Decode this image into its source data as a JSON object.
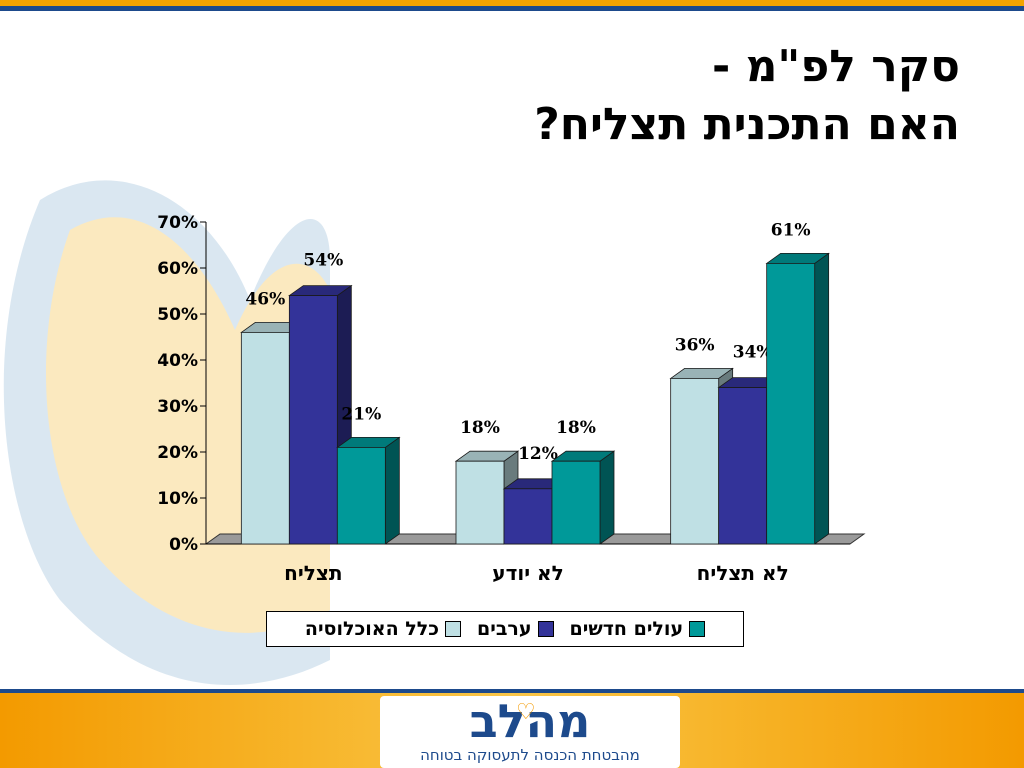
{
  "slide": {
    "title_line1": "סקר לפ\"מ -",
    "title_line2": "האם התכנית תצליח?"
  },
  "logo": {
    "name": "מהלב",
    "tagline": "מהבטחת הכנסה לתעסוקה בטוחה"
  },
  "colors": {
    "band_orange": "#f4a300",
    "band_blue": "#1d4a8c"
  },
  "chart_data": {
    "type": "bar",
    "categories": [
      "תצליח",
      "לא יודע",
      "לא תצליח"
    ],
    "series": [
      {
        "name": "כלל האוכלוסיה",
        "values": [
          46,
          18,
          36
        ],
        "color": "#bfe0e4"
      },
      {
        "name": "ערבים",
        "values": [
          54,
          12,
          34
        ],
        "color": "#333399"
      },
      {
        "name": "עולים חדשים",
        "values": [
          21,
          18,
          61
        ],
        "color": "#009999"
      }
    ],
    "value_labels": [
      [
        "46%",
        "18%",
        "36%"
      ],
      [
        "54%",
        "12%",
        "34%"
      ],
      [
        "21%",
        "18%",
        "61%"
      ]
    ],
    "ylim": [
      0,
      70
    ],
    "yticks": [
      "0%",
      "10%",
      "20%",
      "30%",
      "40%",
      "50%",
      "60%",
      "70%"
    ],
    "legend_position": "bottom",
    "grid": false,
    "style": "3d-bar"
  }
}
